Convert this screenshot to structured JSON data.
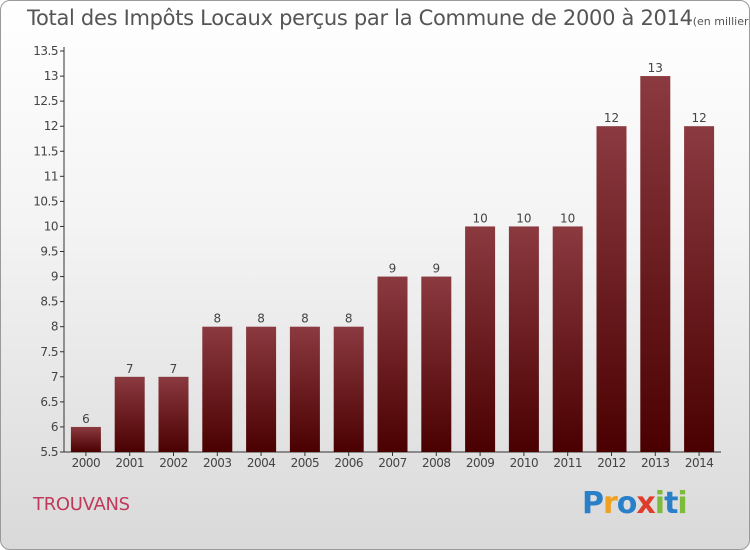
{
  "title": "Total des Impôts Locaux perçus par la Commune de 2000 à 2014",
  "title_unit": "(en milliers d'€)",
  "commune": "TROUVANS",
  "logo": {
    "letters": [
      "P",
      "r",
      "o",
      "x",
      "i",
      "t",
      "i"
    ],
    "colors": [
      "#2a7fc9",
      "#f0a020",
      "#2a7fc9",
      "#e03c2c",
      "#7dbb3a",
      "#2a7fc9",
      "#7dbb3a"
    ]
  },
  "colors": {
    "bar_top": "#8b3a40",
    "bar_bottom": "#4a0000",
    "axis": "#333333"
  },
  "chart_data": {
    "type": "bar",
    "categories": [
      "2000",
      "2001",
      "2002",
      "2003",
      "2004",
      "2005",
      "2006",
      "2007",
      "2008",
      "2009",
      "2010",
      "2011",
      "2012",
      "2013",
      "2014"
    ],
    "values": [
      6,
      7,
      7,
      8,
      8,
      8,
      8,
      9,
      9,
      10,
      10,
      10,
      12,
      13,
      12
    ],
    "data_labels": [
      "6",
      "7",
      "7",
      "8",
      "8",
      "8",
      "8",
      "9",
      "9",
      "10",
      "10",
      "10",
      "12",
      "13",
      "12"
    ],
    "y_ticks": [
      "5.5",
      "6",
      "6.5",
      "7",
      "7.5",
      "8",
      "8.5",
      "9",
      "9.5",
      "10",
      "10.5",
      "11",
      "11.5",
      "12",
      "12.5",
      "13",
      "13.5"
    ],
    "ylim": [
      5.5,
      13.5
    ],
    "title": "Total des Impôts Locaux perçus par la Commune de 2000 à 2014",
    "xlabel": "",
    "ylabel": "",
    "grid": false
  }
}
